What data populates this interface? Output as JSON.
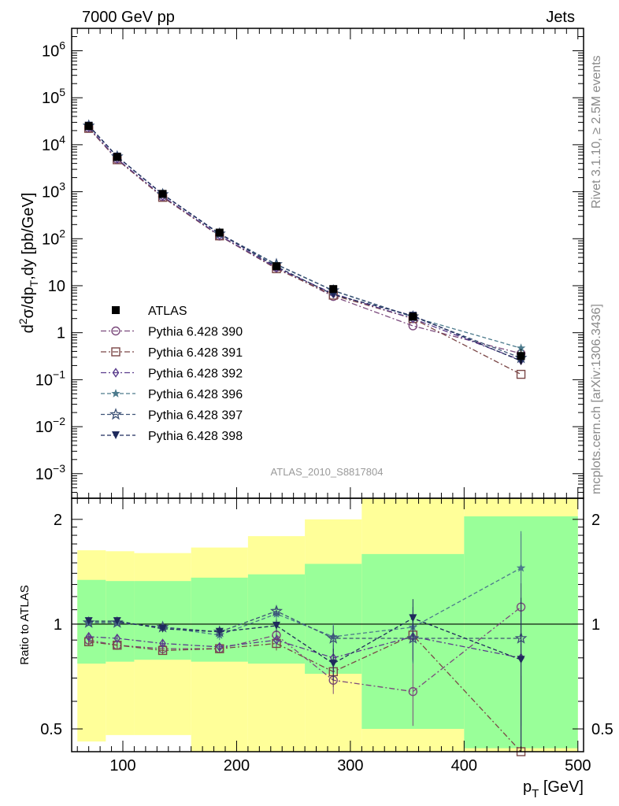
{
  "header": {
    "left": "7000 GeV pp",
    "right": "Jets"
  },
  "side": {
    "top": "Rivet 3.1.10, ≥ 2.5M events",
    "bottom": "mcplots.cern.ch [arXiv:1306.3436]"
  },
  "watermark": "ATLAS_2010_S8817804",
  "chart_data": [
    {
      "type": "scatter",
      "ylabel_parts": [
        "d",
        "2",
        "σ/dp",
        "T",
        ",dy [pb/GeV]"
      ],
      "yscale": "log",
      "ylim": [
        0.0003,
        3000000
      ],
      "xlim": [
        55,
        505
      ],
      "ytick_labels": [
        {
          "base": "10",
          "exp": "6",
          "value": 1000000
        },
        {
          "base": "10",
          "exp": "5",
          "value": 100000
        },
        {
          "base": "10",
          "exp": "4",
          "value": 10000
        },
        {
          "base": "10",
          "exp": "3",
          "value": 1000
        },
        {
          "base": "10",
          "exp": "2",
          "value": 100
        },
        {
          "text": "10",
          "value": 10
        },
        {
          "text": "1",
          "value": 1
        },
        {
          "base": "10",
          "exp": "−1",
          "value": 0.1
        },
        {
          "base": "10",
          "exp": "−2",
          "value": 0.01
        },
        {
          "base": "10",
          "exp": "−3",
          "value": 0.001
        }
      ],
      "x": [
        70,
        95,
        135,
        185,
        235,
        285,
        355,
        450
      ],
      "data": {
        "name": "ATLAS",
        "values": [
          25000,
          5500,
          900,
          135,
          26,
          8.5,
          2.2,
          0.32
        ]
      },
      "series": [
        {
          "name": "Pythia 6.428 390",
          "marker": "open-circle",
          "dash": "dashdot",
          "color": "#7b4a7c",
          "values": [
            22500,
            4900,
            780,
            114,
            24.5,
            5.9,
            1.4,
            0.36
          ]
        },
        {
          "name": "Pythia 6.428 391",
          "marker": "open-square",
          "dash": "dashdot",
          "color": "#7a4646",
          "values": [
            22300,
            4800,
            760,
            115,
            23,
            6.3,
            2.0,
            0.13
          ]
        },
        {
          "name": "Pythia 6.428 392",
          "marker": "open-diamond",
          "dash": "dashdot",
          "color": "#5a3c8c",
          "values": [
            23300,
            5000,
            800,
            117,
            24,
            6.8,
            2.0,
            0.26
          ]
        },
        {
          "name": "Pythia 6.428 396",
          "marker": "filled-star",
          "dash": "dashed",
          "color": "#4c7a8c",
          "values": [
            25300,
            5600,
            880,
            125,
            28,
            7.8,
            2.15,
            0.47
          ]
        },
        {
          "name": "Pythia 6.428 397",
          "marker": "open-star",
          "dash": "dashed",
          "color": "#3d5276",
          "values": [
            25400,
            5600,
            880,
            128,
            28.5,
            7.9,
            2.2,
            0.29
          ]
        },
        {
          "name": "Pythia 6.428 398",
          "marker": "filled-triangle-down",
          "dash": "dashed",
          "color": "#1f2a5c",
          "values": [
            25500,
            5600,
            880,
            128,
            25.5,
            6.5,
            2.3,
            0.25
          ]
        }
      ]
    },
    {
      "type": "scatter",
      "ylabel": "Ratio to ATLAS",
      "xlabel_parts": [
        "p",
        "T",
        " [GeV]"
      ],
      "yscale": "log",
      "ylim": [
        0.43,
        2.3
      ],
      "xlim": [
        55,
        505
      ],
      "xticks": [
        100,
        200,
        300,
        400,
        500
      ],
      "yticks": [
        0.5,
        1,
        2
      ],
      "ytick_labels": [
        "0.5",
        "1",
        "2"
      ],
      "bands": {
        "bin_edges": [
          60,
          85,
          110,
          160,
          210,
          260,
          310,
          400,
          500
        ],
        "green_low": [
          0.77,
          0.78,
          0.79,
          0.78,
          0.77,
          0.72,
          0.5,
          0.44
        ],
        "green_high": [
          1.34,
          1.33,
          1.33,
          1.36,
          1.39,
          1.49,
          1.59,
          2.04
        ],
        "yellow_low": [
          0.46,
          0.48,
          0.48,
          0.43,
          0.43,
          0.43,
          0.43,
          0.43
        ],
        "yellow_high": [
          1.63,
          1.62,
          1.6,
          1.66,
          1.79,
          2.0,
          2.3,
          2.3
        ]
      },
      "x": [
        70,
        95,
        135,
        185,
        235,
        285,
        355,
        450
      ],
      "series": [
        {
          "name": "Pythia 6.428 390",
          "values": [
            0.9,
            0.87,
            0.85,
            0.85,
            0.93,
            0.69,
            0.64,
            1.12
          ],
          "err": [
            0.02,
            0.02,
            0.02,
            0.02,
            0.03,
            0.06,
            0.13,
            0.7
          ]
        },
        {
          "name": "Pythia 6.428 391",
          "values": [
            0.89,
            0.87,
            0.84,
            0.85,
            0.88,
            0.73,
            0.93,
            0.41
          ],
          "err": [
            0.02,
            0.02,
            0.02,
            0.02,
            0.04,
            0.07,
            0.14,
            0.3
          ]
        },
        {
          "name": "Pythia 6.428 392",
          "values": [
            0.92,
            0.91,
            0.88,
            0.86,
            0.9,
            0.8,
            0.92,
            0.8
          ],
          "err": [
            0.02,
            0.02,
            0.02,
            0.02,
            0.04,
            0.07,
            0.14,
            0.35
          ]
        },
        {
          "name": "Pythia 6.428 396",
          "values": [
            1.01,
            1.01,
            0.98,
            0.93,
            1.07,
            0.92,
            0.98,
            1.45
          ],
          "err": [
            0.02,
            0.02,
            0.02,
            0.03,
            0.04,
            0.08,
            0.14,
            0.4
          ]
        },
        {
          "name": "Pythia 6.428 397",
          "values": [
            1.01,
            1.01,
            0.98,
            0.95,
            1.09,
            0.91,
            0.91,
            0.91
          ],
          "err": [
            0.02,
            0.02,
            0.02,
            0.03,
            0.04,
            0.08,
            0.14,
            0.4
          ]
        },
        {
          "name": "Pythia 6.428 398",
          "values": [
            1.02,
            1.02,
            0.97,
            0.95,
            0.99,
            0.77,
            1.04,
            0.79
          ],
          "err": [
            0.02,
            0.02,
            0.02,
            0.03,
            0.04,
            0.08,
            0.14,
            0.4
          ]
        }
      ]
    }
  ],
  "colors": {
    "band_green": "#99ff99",
    "band_yellow": "#ffff99",
    "data": "#000000"
  }
}
